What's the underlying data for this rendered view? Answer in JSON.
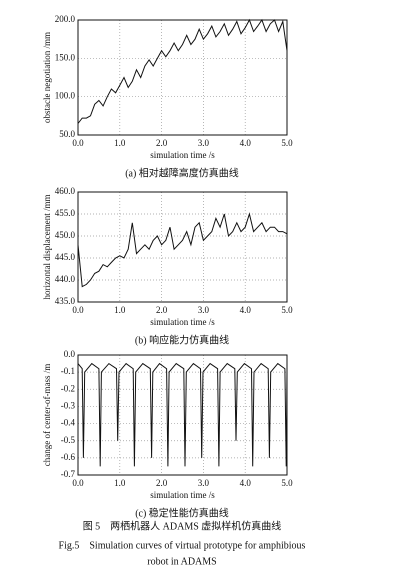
{
  "chart_data": [
    {
      "type": "line",
      "xlabel": "simulation time /s",
      "ylabel": "obstacle negotiation /mm",
      "caption": "(a) 相对越障高度仿真曲线",
      "xlim": [
        0,
        5
      ],
      "ylim": [
        50,
        200
      ],
      "grid": true,
      "xticks": [
        {
          "value": 0,
          "label": "0.0"
        },
        {
          "value": 1,
          "label": "1.0"
        },
        {
          "value": 2,
          "label": "2.0"
        },
        {
          "value": 3,
          "label": "3.0"
        },
        {
          "value": 4,
          "label": "4.0"
        },
        {
          "value": 5,
          "label": "5.0"
        }
      ],
      "yticks": [
        {
          "value": 50,
          "label": "50.0"
        },
        {
          "value": 100,
          "label": "100.0"
        },
        {
          "value": 150,
          "label": "150.0"
        },
        {
          "value": 200,
          "label": "200.0"
        }
      ],
      "x": [
        0,
        0.1,
        0.2,
        0.3,
        0.4,
        0.5,
        0.6,
        0.7,
        0.8,
        0.9,
        1.0,
        1.1,
        1.2,
        1.3,
        1.4,
        1.5,
        1.6,
        1.7,
        1.8,
        1.9,
        2.0,
        2.1,
        2.2,
        2.3,
        2.4,
        2.5,
        2.6,
        2.7,
        2.8,
        2.9,
        3.0,
        3.1,
        3.2,
        3.3,
        3.4,
        3.5,
        3.6,
        3.7,
        3.8,
        3.9,
        4.0,
        4.1,
        4.2,
        4.3,
        4.4,
        4.5,
        4.6,
        4.7,
        4.8,
        4.9,
        5.0
      ],
      "series": [
        {
          "color": "#111111",
          "values": [
            65,
            72,
            72,
            75,
            90,
            95,
            88,
            100,
            110,
            105,
            115,
            125,
            112,
            120,
            135,
            125,
            140,
            148,
            140,
            150,
            160,
            152,
            160,
            170,
            160,
            168,
            180,
            168,
            175,
            188,
            175,
            182,
            192,
            178,
            185,
            195,
            180,
            188,
            198,
            182,
            190,
            200,
            185,
            192,
            200,
            185,
            195,
            200,
            185,
            198,
            160
          ]
        }
      ]
    },
    {
      "type": "line",
      "xlabel": "simulation time /s",
      "ylabel": "horizontal displacement /mm",
      "caption": "(b) 响应能力仿真曲线",
      "xlim": [
        0,
        5
      ],
      "ylim": [
        435,
        460
      ],
      "grid": true,
      "xticks": [
        {
          "value": 0,
          "label": "0.0"
        },
        {
          "value": 1,
          "label": "1.0"
        },
        {
          "value": 2,
          "label": "2.0"
        },
        {
          "value": 3,
          "label": "3.0"
        },
        {
          "value": 4,
          "label": "4.0"
        },
        {
          "value": 5,
          "label": "5.0"
        }
      ],
      "yticks": [
        {
          "value": 435,
          "label": "435.0"
        },
        {
          "value": 440,
          "label": "440.0"
        },
        {
          "value": 445,
          "label": "445.0"
        },
        {
          "value": 450,
          "label": "450.0"
        },
        {
          "value": 455,
          "label": "455.0"
        },
        {
          "value": 460,
          "label": "460.0"
        }
      ],
      "x": [
        0,
        0.1,
        0.2,
        0.3,
        0.4,
        0.5,
        0.6,
        0.7,
        0.8,
        0.9,
        1.0,
        1.1,
        1.2,
        1.3,
        1.4,
        1.5,
        1.6,
        1.7,
        1.8,
        1.9,
        2.0,
        2.1,
        2.2,
        2.3,
        2.4,
        2.5,
        2.6,
        2.7,
        2.8,
        2.9,
        3.0,
        3.1,
        3.2,
        3.3,
        3.4,
        3.5,
        3.6,
        3.7,
        3.8,
        3.9,
        4.0,
        4.1,
        4.2,
        4.3,
        4.4,
        4.5,
        4.6,
        4.7,
        4.8,
        4.9,
        5.0
      ],
      "series": [
        {
          "color": "#111111",
          "values": [
            448,
            438.5,
            439,
            440,
            441.5,
            442,
            443.5,
            443,
            444,
            445,
            445.5,
            445,
            447,
            453,
            446,
            447,
            448,
            447,
            449,
            450,
            448,
            449,
            452,
            447,
            448,
            449,
            451,
            448,
            452,
            453,
            449,
            450,
            451,
            454,
            452,
            455,
            450,
            451,
            453,
            451,
            452,
            455,
            451,
            452,
            453,
            451,
            452,
            452,
            451,
            451,
            450.5
          ]
        }
      ]
    },
    {
      "type": "line",
      "xlabel": "simulation time /s",
      "ylabel": "change of center-of-mass /m",
      "caption": "(c) 稳定性能仿真曲线",
      "xlim": [
        0,
        5
      ],
      "ylim": [
        -0.7,
        0.0
      ],
      "grid": true,
      "xticks": [
        {
          "value": 0,
          "label": "0.0"
        },
        {
          "value": 1,
          "label": "1.0"
        },
        {
          "value": 2,
          "label": "2.0"
        },
        {
          "value": 3,
          "label": "3.0"
        },
        {
          "value": 4,
          "label": "4.0"
        },
        {
          "value": 5,
          "label": "5.0"
        }
      ],
      "yticks": [
        {
          "value": -0.7,
          "label": "-0.7"
        },
        {
          "value": -0.6,
          "label": "-0.6"
        },
        {
          "value": -0.5,
          "label": "-0.5"
        },
        {
          "value": -0.4,
          "label": "-0.4"
        },
        {
          "value": -0.3,
          "label": "-0.3"
        },
        {
          "value": -0.2,
          "label": "-0.2"
        },
        {
          "value": -0.1,
          "label": "-0.1"
        },
        {
          "value": 0,
          "label": "0.0"
        }
      ],
      "x": [
        0,
        0.1,
        0.13,
        0.16,
        0.33,
        0.5,
        0.53,
        0.56,
        0.74,
        0.92,
        0.95,
        0.98,
        1.15,
        1.32,
        1.35,
        1.38,
        1.55,
        1.73,
        1.76,
        1.79,
        1.95,
        2.12,
        2.15,
        2.18,
        2.35,
        2.53,
        2.56,
        2.59,
        2.76,
        2.93,
        2.96,
        2.99,
        3.16,
        3.34,
        3.37,
        3.4,
        3.57,
        3.75,
        3.78,
        3.81,
        3.98,
        4.15,
        4.18,
        4.21,
        4.38,
        4.55,
        4.58,
        4.61,
        4.78,
        4.95,
        4.98,
        5.0
      ],
      "series": [
        {
          "color": "#111111",
          "values": [
            -0.05,
            -0.08,
            -0.6,
            -0.1,
            -0.05,
            -0.08,
            -0.65,
            -0.1,
            -0.05,
            -0.08,
            -0.5,
            -0.1,
            -0.05,
            -0.08,
            -0.65,
            -0.1,
            -0.05,
            -0.08,
            -0.6,
            -0.1,
            -0.05,
            -0.08,
            -0.65,
            -0.1,
            -0.05,
            -0.08,
            -0.65,
            -0.1,
            -0.05,
            -0.08,
            -0.6,
            -0.1,
            -0.05,
            -0.08,
            -0.65,
            -0.1,
            -0.05,
            -0.08,
            -0.5,
            -0.1,
            -0.05,
            -0.08,
            -0.65,
            -0.1,
            -0.05,
            -0.08,
            -0.6,
            -0.1,
            -0.05,
            -0.08,
            -0.65,
            -0.1
          ]
        }
      ]
    }
  ],
  "figure": {
    "caption_cn": "图 5　两栖机器人 ADAMS 虚拟样机仿真曲线",
    "caption_en_1": "Fig.5　Simulation curves of virtual prototype for amphibious",
    "caption_en_2": "robot in ADAMS"
  }
}
